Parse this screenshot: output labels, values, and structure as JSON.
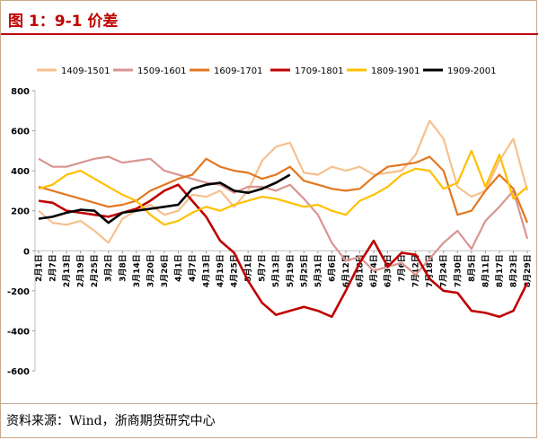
{
  "header": {
    "title": "图 1：9-1 价差"
  },
  "footer": {
    "source": "资料来源：Wind，浙商期货研究中心"
  },
  "chart_data": {
    "type": "line",
    "title": "",
    "xlabel": "",
    "ylabel": "",
    "ylim": [
      -600,
      800
    ],
    "yticks": [
      800,
      600,
      400,
      200,
      0,
      -200,
      -400,
      -600
    ],
    "legend_position": "top",
    "categories": [
      "2月1日",
      "2月7日",
      "2月13日",
      "2月19日",
      "2月25日",
      "3月2日",
      "3月8日",
      "3月14日",
      "3月20日",
      "3月26日",
      "4月1日",
      "4月7日",
      "4月13日",
      "4月19日",
      "4月25日",
      "5月1日",
      "5月7日",
      "5月13日",
      "5月19日",
      "5月25日",
      "5月31日",
      "6月6日",
      "6月12日",
      "6月18日",
      "6月24日",
      "6月30日",
      "7月6日",
      "7月12日",
      "7月18日",
      "7月24日",
      "7月30日",
      "8月5日",
      "8月11日",
      "8月17日",
      "8月23日",
      "8月29日"
    ],
    "series": [
      {
        "name": "1409-1501",
        "color": "#f7c08e",
        "values": [
          200,
          140,
          130,
          150,
          100,
          40,
          160,
          200,
          230,
          180,
          200,
          280,
          270,
          300,
          220,
          300,
          450,
          520,
          540,
          390,
          380,
          420,
          400,
          420,
          380,
          390,
          400,
          480,
          650,
          560,
          320,
          270,
          300,
          450,
          560,
          300
        ]
      },
      {
        "name": "1509-1601",
        "color": "#d99590",
        "values": [
          460,
          420,
          420,
          440,
          460,
          470,
          440,
          450,
          460,
          400,
          380,
          360,
          340,
          330,
          290,
          320,
          320,
          300,
          330,
          260,
          180,
          40,
          -50,
          -30,
          -100,
          -80,
          -60,
          -120,
          -40,
          40,
          100,
          10,
          150,
          220,
          300,
          60
        ]
      },
      {
        "name": "1609-1701",
        "color": "#e3771f",
        "values": [
          320,
          300,
          280,
          260,
          240,
          220,
          230,
          250,
          300,
          330,
          360,
          380,
          460,
          420,
          400,
          390,
          360,
          380,
          420,
          350,
          330,
          310,
          300,
          310,
          370,
          420,
          430,
          440,
          470,
          400,
          180,
          200,
          300,
          380,
          310,
          140
        ]
      },
      {
        "name": "1709-1801",
        "color": "#c00000",
        "values": [
          250,
          240,
          200,
          190,
          180,
          170,
          190,
          210,
          250,
          300,
          330,
          250,
          170,
          50,
          -10,
          -150,
          -260,
          -320,
          -300,
          -280,
          -300,
          -330,
          -200,
          -60,
          50,
          -80,
          -10,
          -20,
          -140,
          -200,
          -210,
          -300,
          -310,
          -330,
          -300,
          -160
        ]
      },
      {
        "name": "1809-1901",
        "color": "#ffc000",
        "values": [
          310,
          330,
          380,
          400,
          360,
          320,
          280,
          250,
          180,
          130,
          150,
          190,
          220,
          200,
          230,
          250,
          270,
          260,
          240,
          220,
          230,
          200,
          180,
          250,
          280,
          320,
          380,
          410,
          400,
          310,
          340,
          500,
          320,
          480,
          260,
          320
        ]
      },
      {
        "name": "1909-2001",
        "color": "#000000",
        "values": [
          160,
          170,
          190,
          205,
          200,
          140,
          190,
          200,
          210,
          220,
          230,
          310,
          330,
          340,
          300,
          290,
          310,
          340,
          380,
          null,
          null,
          null,
          null,
          null,
          null,
          null,
          null,
          null,
          null,
          null,
          null,
          null,
          null,
          null,
          null,
          null
        ]
      }
    ]
  }
}
